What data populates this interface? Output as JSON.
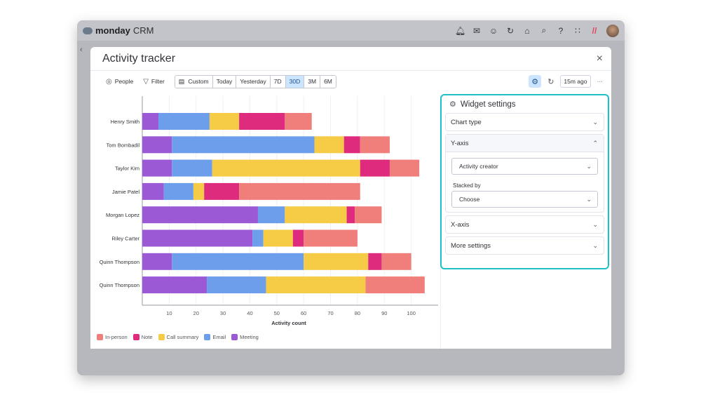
{
  "app": {
    "brand": "monday",
    "brand_suffix": "CRM"
  },
  "topbar_icons": [
    "bell-icon",
    "inbox-icon",
    "invite-icon",
    "integrations-icon",
    "marketplace-icon",
    "search-icon",
    "help-icon",
    "apps-grid-icon",
    "product-switcher-icon",
    "avatar"
  ],
  "modal": {
    "title": "Activity tracker",
    "close": "×"
  },
  "toolbar": {
    "people": "People",
    "filter": "Filter",
    "ranges": [
      "Custom",
      "Today",
      "Yesterday",
      "7D",
      "30D",
      "3M",
      "6M"
    ],
    "selected_range": "30D",
    "updated": "15m ago",
    "more": "···"
  },
  "panel": {
    "title": "Widget settings",
    "chart_type": "Chart type",
    "y_axis": "Y-axis",
    "y_axis_value": "Activity creator",
    "stacked_by_label": "Stacked by",
    "stacked_by_value": "Choose",
    "x_axis": "X-axis",
    "more_settings": "More settings"
  },
  "colors": {
    "accent": "#1ec0c8",
    "selected": "#cce5ff"
  },
  "chart_data": {
    "type": "bar",
    "orientation": "horizontal",
    "stacked": true,
    "categories": [
      "Henry Smith",
      "Tom Bombadil",
      "Taylor Kim",
      "Jamie Patel",
      "Morgan Lopez",
      "Riley Carter",
      "Quinn Thompson",
      "Quinn Thompson"
    ],
    "series": [
      {
        "name": "Meeting",
        "color": "#9b59d6",
        "values": [
          6,
          11,
          11,
          8,
          43,
          41,
          11,
          24
        ]
      },
      {
        "name": "Email",
        "color": "#6c9eeb",
        "values": [
          19,
          53,
          15,
          11,
          10,
          4,
          49,
          22
        ]
      },
      {
        "name": "Call summary",
        "color": "#f6cb45",
        "values": [
          11,
          11,
          55,
          4,
          23,
          11,
          24,
          37
        ]
      },
      {
        "name": "Note",
        "color": "#de2b7d",
        "values": [
          17,
          6,
          11,
          13,
          3,
          4,
          5,
          0
        ]
      },
      {
        "name": "In-person",
        "color": "#f07f7b",
        "values": [
          10,
          11,
          11,
          45,
          10,
          20,
          11,
          22
        ]
      }
    ],
    "legend_order": [
      "In-person",
      "Note",
      "Call summary",
      "Email",
      "Meeting"
    ],
    "xlabel": "Activity count",
    "xlim": [
      0,
      110
    ],
    "xticks": [
      10,
      20,
      30,
      40,
      50,
      60,
      70,
      80,
      90,
      100
    ],
    "grid": true,
    "legend_position": "bottom-left"
  }
}
